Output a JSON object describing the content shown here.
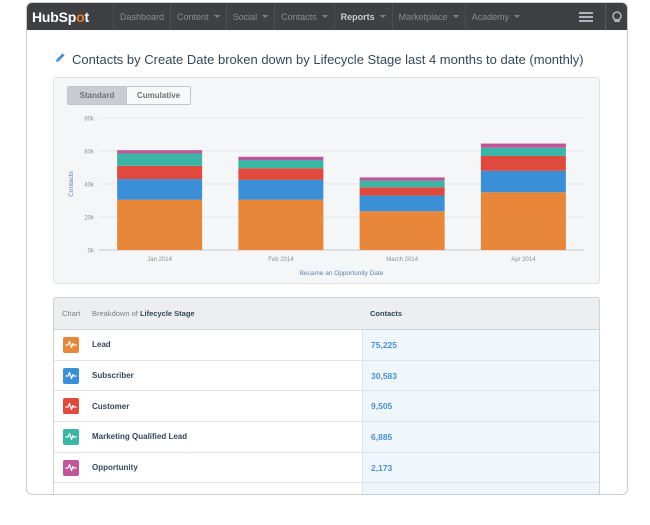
{
  "nav": {
    "logo_text": "HubSp",
    "logo_accent": "o",
    "logo_tail": "t",
    "items": [
      {
        "label": "Dashboard",
        "caret": false,
        "active": false
      },
      {
        "label": "Content",
        "caret": true,
        "active": false
      },
      {
        "label": "Social",
        "caret": true,
        "active": false
      },
      {
        "label": "Contacts",
        "caret": true,
        "active": false
      },
      {
        "label": "Reports",
        "caret": true,
        "active": true
      },
      {
        "label": "Marketplace",
        "caret": true,
        "active": false
      },
      {
        "label": "Academy",
        "caret": true,
        "active": false
      }
    ]
  },
  "page": {
    "title": "Contacts by Create Date broken down by Lifecycle Stage last 4 months to date (monthly)"
  },
  "chart_toggle": {
    "standard": "Standard",
    "cumulative": "Cumulative"
  },
  "chart_data": {
    "type": "bar",
    "stacked": true,
    "title": "",
    "xlabel": "Became an Opportunity Date",
    "ylabel": "Contacts",
    "ylim": [
      0,
      80000
    ],
    "yticks": [
      "0k",
      "20k",
      "40k",
      "60k",
      "80k"
    ],
    "categories": [
      "Jan 2014",
      "Feb 2014",
      "March 2014",
      "Apr 2014"
    ],
    "series": [
      {
        "name": "Lead",
        "color": "#e8863a",
        "values": [
          30500,
          30500,
          23500,
          35000
        ]
      },
      {
        "name": "Subscriber",
        "color": "#3b8fd6",
        "values": [
          12500,
          12000,
          9500,
          13000
        ]
      },
      {
        "name": "Customer",
        "color": "#e04a3e",
        "values": [
          8000,
          7000,
          5000,
          9000
        ]
      },
      {
        "name": "Marketing Qualified Lead",
        "color": "#3bb5a5",
        "values": [
          7500,
          5000,
          4000,
          5000
        ]
      },
      {
        "name": "Opportunity",
        "color": "#c0559a",
        "values": [
          2000,
          2000,
          2000,
          2500
        ]
      }
    ]
  },
  "table": {
    "header_chart": "Chart",
    "header_breakdown_prefix": "Breakdown of",
    "header_breakdown_field": "Lifecycle Stage",
    "header_contacts": "Contacts",
    "rows": [
      {
        "label": "Lead",
        "value": "75,225",
        "color": "#e8863a"
      },
      {
        "label": "Subscriber",
        "value": "30,583",
        "color": "#3b8fd6"
      },
      {
        "label": "Customer",
        "value": "9,505",
        "color": "#e04a3e"
      },
      {
        "label": "Marketing Qualified Lead",
        "value": "6,885",
        "color": "#3bb5a5"
      },
      {
        "label": "Opportunity",
        "value": "2,173",
        "color": "#c0559a"
      }
    ]
  }
}
